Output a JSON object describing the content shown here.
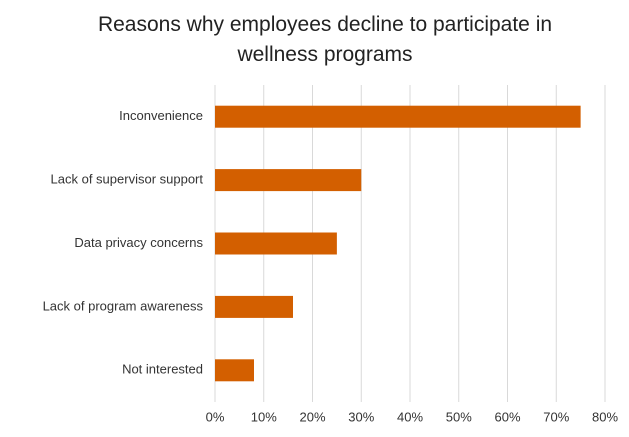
{
  "chart_data": {
    "type": "bar",
    "orientation": "horizontal",
    "title": "Reasons why employees decline to participate in wellness programs",
    "categories": [
      "Inconvenience",
      "Lack of supervisor support",
      "Data privacy concerns",
      "Lack of program awareness",
      "Not interested"
    ],
    "values": [
      75,
      30,
      25,
      16,
      8
    ],
    "color": "#d35f00",
    "xlim": [
      0,
      80
    ],
    "xticks": [
      {
        "value": 0,
        "label": "0%"
      },
      {
        "value": 10,
        "label": "10%"
      },
      {
        "value": 20,
        "label": "20%"
      },
      {
        "value": 30,
        "label": "30%"
      },
      {
        "value": 40,
        "label": "40%"
      },
      {
        "value": 50,
        "label": "50%"
      },
      {
        "value": 60,
        "label": "60%"
      },
      {
        "value": 70,
        "label": "70%"
      },
      {
        "value": 80,
        "label": "80%"
      }
    ],
    "grid": true
  }
}
